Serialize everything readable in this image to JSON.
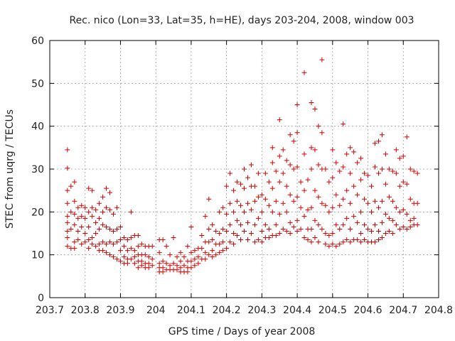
{
  "chart_data": {
    "type": "scatter",
    "title": "Rec. nico (Lon=33, Lat=35, h=HE), days 203-204, 2008, window 003",
    "xlabel": "GPS time / Days of year 2008",
    "ylabel": "STEC from uqrg / TECUs",
    "xlim": [
      203.7,
      204.8
    ],
    "ylim": [
      0,
      60
    ],
    "xticks": [
      "203.7",
      "203.8",
      "203.9",
      "204",
      "204.1",
      "204.2",
      "204.3",
      "204.4",
      "204.5",
      "204.6",
      "204.7",
      "204.8"
    ],
    "yticks": [
      "0",
      "10",
      "20",
      "30",
      "40",
      "50",
      "60"
    ],
    "grid": true,
    "marker": "plus",
    "color": "#d40000",
    "points": [
      [
        203.75,
        34.5
      ],
      [
        203.75,
        30.2
      ],
      [
        203.75,
        25.0
      ],
      [
        203.75,
        22.0
      ],
      [
        203.75,
        19.0
      ],
      [
        203.75,
        17.5
      ],
      [
        203.75,
        15.5
      ],
      [
        203.75,
        14.0
      ],
      [
        203.75,
        12.0
      ],
      [
        203.76,
        26.0
      ],
      [
        203.76,
        20.0
      ],
      [
        203.76,
        16.0
      ],
      [
        203.76,
        11.5
      ],
      [
        203.77,
        27.0
      ],
      [
        203.77,
        22.5
      ],
      [
        203.77,
        19.5
      ],
      [
        203.77,
        17.0
      ],
      [
        203.77,
        13.0
      ],
      [
        203.77,
        11.5
      ],
      [
        203.78,
        21.0
      ],
      [
        203.78,
        18.5
      ],
      [
        203.78,
        15.5
      ],
      [
        203.78,
        13.5
      ],
      [
        203.79,
        21.5
      ],
      [
        203.79,
        19.0
      ],
      [
        203.79,
        16.5
      ],
      [
        203.79,
        12.5
      ],
      [
        203.8,
        21.0
      ],
      [
        203.8,
        18.5
      ],
      [
        203.8,
        15.0
      ],
      [
        203.8,
        13.0
      ],
      [
        203.81,
        25.5
      ],
      [
        203.81,
        20.0
      ],
      [
        203.81,
        16.5
      ],
      [
        203.81,
        13.5
      ],
      [
        203.81,
        11.5
      ],
      [
        203.82,
        25.0
      ],
      [
        203.82,
        21.0
      ],
      [
        203.82,
        19.0
      ],
      [
        203.82,
        14.0
      ],
      [
        203.82,
        12.5
      ],
      [
        203.83,
        20.5
      ],
      [
        203.83,
        17.5
      ],
      [
        203.83,
        15.0
      ],
      [
        203.83,
        12.0
      ],
      [
        203.84,
        22.0
      ],
      [
        203.84,
        18.5
      ],
      [
        203.84,
        16.0
      ],
      [
        203.84,
        12.5
      ],
      [
        203.84,
        11.0
      ],
      [
        203.85,
        23.5
      ],
      [
        203.85,
        20.0
      ],
      [
        203.85,
        17.0
      ],
      [
        203.85,
        13.0
      ],
      [
        203.85,
        11.0
      ],
      [
        203.86,
        25.5
      ],
      [
        203.86,
        21.0
      ],
      [
        203.86,
        16.5
      ],
      [
        203.86,
        12.5
      ],
      [
        203.86,
        10.5
      ],
      [
        203.87,
        24.5
      ],
      [
        203.87,
        20.5
      ],
      [
        203.87,
        16.0
      ],
      [
        203.87,
        13.0
      ],
      [
        203.87,
        10.0
      ],
      [
        203.88,
        19.5
      ],
      [
        203.88,
        15.5
      ],
      [
        203.88,
        12.5
      ],
      [
        203.88,
        9.5
      ],
      [
        203.89,
        21.0
      ],
      [
        203.89,
        16.0
      ],
      [
        203.89,
        13.0
      ],
      [
        203.89,
        9.0
      ],
      [
        203.9,
        16.5
      ],
      [
        203.9,
        13.5
      ],
      [
        203.9,
        11.0
      ],
      [
        203.9,
        8.5
      ],
      [
        203.91,
        14.0
      ],
      [
        203.91,
        12.0
      ],
      [
        203.91,
        9.5
      ],
      [
        203.91,
        8.0
      ],
      [
        203.92,
        13.5
      ],
      [
        203.92,
        11.0
      ],
      [
        203.92,
        9.0
      ],
      [
        203.92,
        8.0
      ],
      [
        203.93,
        20.0
      ],
      [
        203.93,
        14.0
      ],
      [
        203.93,
        11.5
      ],
      [
        203.93,
        9.0
      ],
      [
        203.94,
        14.5
      ],
      [
        203.94,
        11.0
      ],
      [
        203.94,
        9.5
      ],
      [
        203.94,
        8.0
      ],
      [
        203.95,
        14.5
      ],
      [
        203.95,
        12.0
      ],
      [
        203.95,
        10.0
      ],
      [
        203.95,
        8.5
      ],
      [
        203.95,
        7.0
      ],
      [
        203.96,
        12.5
      ],
      [
        203.96,
        10.0
      ],
      [
        203.96,
        8.5
      ],
      [
        203.96,
        7.5
      ],
      [
        203.97,
        12.0
      ],
      [
        203.97,
        10.0
      ],
      [
        203.97,
        8.0
      ],
      [
        203.97,
        7.0
      ],
      [
        203.98,
        12.0
      ],
      [
        203.98,
        9.5
      ],
      [
        203.98,
        8.0
      ],
      [
        203.98,
        7.0
      ],
      [
        203.99,
        12.0
      ],
      [
        203.99,
        9.0
      ],
      [
        203.99,
        7.5
      ],
      [
        204.01,
        13.5
      ],
      [
        204.01,
        10.5
      ],
      [
        204.01,
        8.0
      ],
      [
        204.01,
        7.0
      ],
      [
        204.01,
        6.0
      ],
      [
        204.02,
        13.5
      ],
      [
        204.02,
        8.5
      ],
      [
        204.02,
        7.0
      ],
      [
        204.02,
        6.0
      ],
      [
        204.03,
        12.0
      ],
      [
        204.03,
        8.0
      ],
      [
        204.03,
        6.5
      ],
      [
        204.04,
        10.0
      ],
      [
        204.04,
        7.5
      ],
      [
        204.04,
        6.5
      ],
      [
        204.05,
        14.0
      ],
      [
        204.05,
        8.0
      ],
      [
        204.05,
        6.5
      ],
      [
        204.06,
        9.5
      ],
      [
        204.06,
        7.5
      ],
      [
        204.06,
        6.5
      ],
      [
        204.07,
        10.5
      ],
      [
        204.07,
        8.5
      ],
      [
        204.07,
        7.0
      ],
      [
        204.07,
        6.0
      ],
      [
        204.08,
        9.5
      ],
      [
        204.08,
        7.5
      ],
      [
        204.08,
        6.0
      ],
      [
        204.09,
        12.0
      ],
      [
        204.09,
        8.5
      ],
      [
        204.09,
        7.0
      ],
      [
        204.09,
        6.0
      ],
      [
        204.1,
        16.5
      ],
      [
        204.1,
        10.5
      ],
      [
        204.1,
        8.5
      ],
      [
        204.1,
        7.0
      ],
      [
        204.11,
        11.0
      ],
      [
        204.11,
        9.0
      ],
      [
        204.11,
        7.5
      ],
      [
        204.12,
        11.5
      ],
      [
        204.12,
        9.5
      ],
      [
        204.12,
        8.0
      ],
      [
        204.13,
        14.5
      ],
      [
        204.13,
        11.5
      ],
      [
        204.13,
        9.0
      ],
      [
        204.14,
        19.0
      ],
      [
        204.14,
        13.0
      ],
      [
        204.14,
        10.5
      ],
      [
        204.14,
        9.0
      ],
      [
        204.15,
        23.0
      ],
      [
        204.15,
        16.0
      ],
      [
        204.15,
        13.0
      ],
      [
        204.15,
        10.0
      ],
      [
        204.16,
        17.0
      ],
      [
        204.16,
        13.5
      ],
      [
        204.16,
        11.0
      ],
      [
        204.16,
        9.5
      ],
      [
        204.17,
        15.5
      ],
      [
        204.17,
        12.5
      ],
      [
        204.17,
        10.0
      ],
      [
        204.18,
        20.0
      ],
      [
        204.18,
        15.0
      ],
      [
        204.18,
        12.5
      ],
      [
        204.18,
        10.5
      ],
      [
        204.19,
        21.0
      ],
      [
        204.19,
        16.0
      ],
      [
        204.19,
        13.0
      ],
      [
        204.19,
        11.0
      ],
      [
        204.2,
        26.0
      ],
      [
        204.2,
        19.5
      ],
      [
        204.2,
        15.5
      ],
      [
        204.2,
        11.5
      ],
      [
        204.21,
        29.0
      ],
      [
        204.21,
        22.0
      ],
      [
        204.21,
        17.0
      ],
      [
        204.21,
        13.0
      ],
      [
        204.22,
        25.0
      ],
      [
        204.22,
        20.0
      ],
      [
        204.22,
        15.0
      ],
      [
        204.22,
        12.5
      ],
      [
        204.23,
        27.0
      ],
      [
        204.23,
        22.5
      ],
      [
        204.23,
        18.0
      ],
      [
        204.23,
        14.5
      ],
      [
        204.24,
        26.5
      ],
      [
        204.24,
        21.5
      ],
      [
        204.24,
        17.0
      ],
      [
        204.24,
        13.5
      ],
      [
        204.25,
        30.0
      ],
      [
        204.25,
        25.5
      ],
      [
        204.25,
        20.0
      ],
      [
        204.25,
        15.5
      ],
      [
        204.26,
        28.0
      ],
      [
        204.26,
        22.0
      ],
      [
        204.26,
        17.5
      ],
      [
        204.26,
        13.5
      ],
      [
        204.27,
        31.0
      ],
      [
        204.27,
        26.0
      ],
      [
        204.27,
        20.5
      ],
      [
        204.27,
        15.0
      ],
      [
        204.28,
        26.0
      ],
      [
        204.28,
        22.5
      ],
      [
        204.28,
        17.0
      ],
      [
        204.28,
        13.0
      ],
      [
        204.29,
        29.0
      ],
      [
        204.29,
        23.5
      ],
      [
        204.29,
        18.5
      ],
      [
        204.29,
        13.5
      ],
      [
        204.3,
        24.0
      ],
      [
        204.3,
        20.0
      ],
      [
        204.3,
        15.5
      ],
      [
        204.3,
        13.0
      ],
      [
        204.31,
        29.0
      ],
      [
        204.31,
        23.0
      ],
      [
        204.31,
        17.0
      ],
      [
        204.31,
        14.0
      ],
      [
        204.32,
        27.0
      ],
      [
        204.32,
        21.5
      ],
      [
        204.32,
        16.0
      ],
      [
        204.32,
        14.0
      ],
      [
        204.33,
        35.0
      ],
      [
        204.33,
        31.5
      ],
      [
        204.33,
        25.5
      ],
      [
        204.33,
        20.0
      ],
      [
        204.33,
        14.5
      ],
      [
        204.34,
        29.5
      ],
      [
        204.34,
        22.5
      ],
      [
        204.34,
        17.0
      ],
      [
        204.34,
        14.5
      ],
      [
        204.35,
        41.5
      ],
      [
        204.35,
        33.0
      ],
      [
        204.35,
        27.0
      ],
      [
        204.35,
        19.5
      ],
      [
        204.35,
        15.0
      ],
      [
        204.36,
        34.5
      ],
      [
        204.36,
        29.0
      ],
      [
        204.36,
        22.0
      ],
      [
        204.36,
        16.0
      ],
      [
        204.37,
        32.0
      ],
      [
        204.37,
        26.0
      ],
      [
        204.37,
        20.0
      ],
      [
        204.37,
        15.5
      ],
      [
        204.38,
        38.0
      ],
      [
        204.38,
        31.0
      ],
      [
        204.38,
        24.0
      ],
      [
        204.38,
        17.5
      ],
      [
        204.38,
        15.0
      ],
      [
        204.39,
        36.5
      ],
      [
        204.39,
        30.0
      ],
      [
        204.39,
        22.5
      ],
      [
        204.39,
        16.5
      ],
      [
        204.4,
        45.0
      ],
      [
        204.4,
        38.5
      ],
      [
        204.4,
        30.5
      ],
      [
        204.4,
        23.5
      ],
      [
        204.4,
        18.0
      ],
      [
        204.4,
        15.5
      ],
      [
        204.41,
        27.0
      ],
      [
        204.41,
        21.0
      ],
      [
        204.41,
        16.0
      ],
      [
        204.42,
        52.5
      ],
      [
        204.42,
        33.5
      ],
      [
        204.42,
        25.0
      ],
      [
        204.42,
        19.0
      ],
      [
        204.42,
        14.0
      ],
      [
        204.43,
        27.5
      ],
      [
        204.43,
        20.5
      ],
      [
        204.43,
        16.0
      ],
      [
        204.43,
        13.5
      ],
      [
        204.44,
        45.5
      ],
      [
        204.44,
        35.0
      ],
      [
        204.44,
        30.0
      ],
      [
        204.44,
        21.0
      ],
      [
        204.44,
        16.0
      ],
      [
        204.44,
        13.0
      ],
      [
        204.45,
        44.0
      ],
      [
        204.45,
        34.5
      ],
      [
        204.45,
        25.0
      ],
      [
        204.45,
        18.0
      ],
      [
        204.45,
        14.0
      ],
      [
        204.46,
        40.0
      ],
      [
        204.46,
        31.0
      ],
      [
        204.46,
        23.5
      ],
      [
        204.46,
        17.0
      ],
      [
        204.46,
        13.0
      ],
      [
        204.47,
        55.5
      ],
      [
        204.47,
        38.5
      ],
      [
        204.47,
        30.0
      ],
      [
        204.47,
        22.0
      ],
      [
        204.47,
        16.0
      ],
      [
        204.48,
        30.0
      ],
      [
        204.48,
        21.5
      ],
      [
        204.48,
        15.0
      ],
      [
        204.48,
        12.5
      ],
      [
        204.49,
        27.0
      ],
      [
        204.49,
        20.0
      ],
      [
        204.49,
        14.5
      ],
      [
        204.49,
        12.0
      ],
      [
        204.5,
        34.5
      ],
      [
        204.5,
        28.0
      ],
      [
        204.5,
        21.0
      ],
      [
        204.5,
        15.0
      ],
      [
        204.5,
        12.5
      ],
      [
        204.51,
        31.5
      ],
      [
        204.51,
        24.0
      ],
      [
        204.51,
        17.0
      ],
      [
        204.51,
        12.0
      ],
      [
        204.52,
        29.5
      ],
      [
        204.52,
        21.5
      ],
      [
        204.52,
        16.0
      ],
      [
        204.52,
        12.5
      ],
      [
        204.53,
        40.5
      ],
      [
        204.53,
        30.5
      ],
      [
        204.53,
        23.0
      ],
      [
        204.53,
        17.0
      ],
      [
        204.53,
        13.0
      ],
      [
        204.54,
        33.5
      ],
      [
        204.54,
        25.0
      ],
      [
        204.54,
        18.5
      ],
      [
        204.54,
        13.5
      ],
      [
        204.55,
        35.0
      ],
      [
        204.55,
        29.0
      ],
      [
        204.55,
        22.0
      ],
      [
        204.55,
        16.0
      ],
      [
        204.55,
        13.0
      ],
      [
        204.56,
        34.0
      ],
      [
        204.56,
        26.0
      ],
      [
        204.56,
        19.0
      ],
      [
        204.56,
        13.5
      ],
      [
        204.57,
        31.5
      ],
      [
        204.57,
        24.0
      ],
      [
        204.57,
        17.5
      ],
      [
        204.57,
        13.5
      ],
      [
        204.58,
        32.5
      ],
      [
        204.58,
        27.5
      ],
      [
        204.58,
        20.0
      ],
      [
        204.58,
        15.0
      ],
      [
        204.58,
        13.0
      ],
      [
        204.59,
        29.0
      ],
      [
        204.59,
        23.0
      ],
      [
        204.59,
        17.0
      ],
      [
        204.59,
        13.5
      ],
      [
        204.6,
        28.5
      ],
      [
        204.6,
        22.0
      ],
      [
        204.6,
        16.0
      ],
      [
        204.6,
        13.0
      ],
      [
        204.61,
        26.0
      ],
      [
        204.61,
        20.0
      ],
      [
        204.61,
        15.5
      ],
      [
        204.61,
        13.0
      ],
      [
        204.62,
        36.0
      ],
      [
        204.62,
        30.5
      ],
      [
        204.62,
        22.5
      ],
      [
        204.62,
        17.0
      ],
      [
        204.62,
        13.0
      ],
      [
        204.63,
        36.5
      ],
      [
        204.63,
        29.0
      ],
      [
        204.63,
        21.0
      ],
      [
        204.63,
        15.5
      ],
      [
        204.63,
        13.5
      ],
      [
        204.64,
        38.0
      ],
      [
        204.64,
        30.0
      ],
      [
        204.64,
        22.5
      ],
      [
        204.64,
        17.5
      ],
      [
        204.64,
        14.0
      ],
      [
        204.65,
        33.5
      ],
      [
        204.65,
        26.5
      ],
      [
        204.65,
        19.5
      ],
      [
        204.65,
        15.0
      ],
      [
        204.66,
        30.0
      ],
      [
        204.66,
        23.5
      ],
      [
        204.66,
        18.5
      ],
      [
        204.66,
        15.5
      ],
      [
        204.67,
        29.5
      ],
      [
        204.67,
        22.5
      ],
      [
        204.67,
        18.0
      ],
      [
        204.67,
        15.0
      ],
      [
        204.68,
        34.5
      ],
      [
        204.68,
        29.0
      ],
      [
        204.68,
        21.0
      ],
      [
        204.68,
        17.0
      ],
      [
        204.69,
        32.5
      ],
      [
        204.69,
        26.0
      ],
      [
        204.69,
        20.0
      ],
      [
        204.69,
        16.0
      ],
      [
        204.7,
        33.0
      ],
      [
        204.7,
        27.0
      ],
      [
        204.7,
        20.5
      ],
      [
        204.7,
        16.5
      ],
      [
        204.71,
        37.5
      ],
      [
        204.71,
        26.5
      ],
      [
        204.71,
        19.5
      ],
      [
        204.71,
        16.0
      ],
      [
        204.72,
        30.0
      ],
      [
        204.72,
        23.0
      ],
      [
        204.72,
        18.0
      ],
      [
        204.72,
        16.5
      ],
      [
        204.73,
        29.5
      ],
      [
        204.73,
        22.0
      ],
      [
        204.73,
        18.5
      ],
      [
        204.73,
        17.0
      ],
      [
        204.74,
        29.0
      ],
      [
        204.74,
        22.0
      ],
      [
        204.74,
        17.0
      ]
    ]
  }
}
